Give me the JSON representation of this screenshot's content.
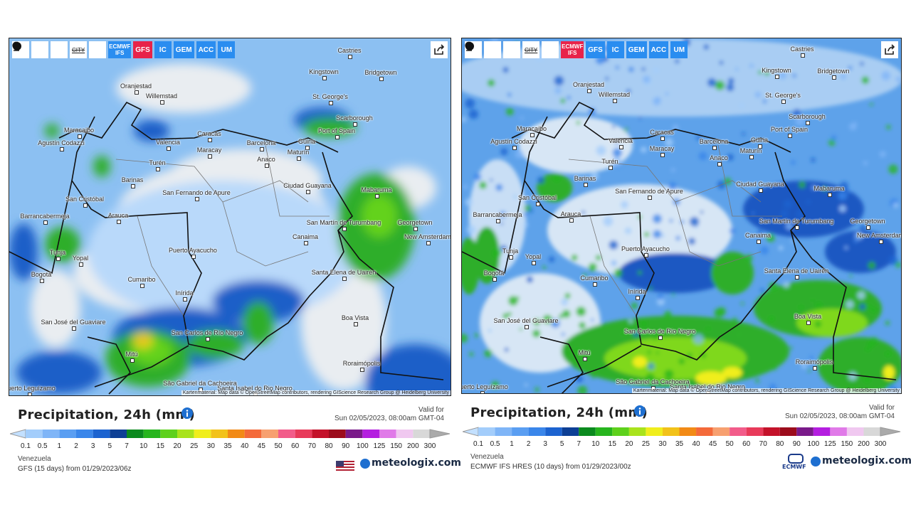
{
  "cities": [
    "Castries",
    "Kingstown",
    "Bridgetown",
    "Oranjestad",
    "Willemstad",
    "St. George's",
    "Scarborough",
    "Port of Spain",
    "Maracaibo",
    "Agustín Codazzi",
    "Caracas",
    "Valencia",
    "Maracay",
    "Barcelona",
    "Güiria",
    "Maturín",
    "Anaco",
    "Turén",
    "Barinas",
    "San Cristóbal",
    "San Fernando de Apure",
    "Ciudad Guayana",
    "Mabaruma",
    "Barrancabermeja",
    "Arauca",
    "San Martín de Turumbang",
    "Georgetown",
    "New Amsterdam",
    "Canaima",
    "Tunja",
    "Yopal",
    "Puerto Ayacucho",
    "Bogotá",
    "Santa Elena de Uairén",
    "Cumaribo",
    "Inírida",
    "Boa Vista",
    "San José del Guaviare",
    "San Carlos de Río Negro",
    "Mitú",
    "Roraimópolis",
    "São Gabriel da Cachoeira",
    "Santa Isabel do Rio Negro",
    "Puerto Leguízamo"
  ],
  "attribution": "Kartenmaterial: Map data © OpenStreetMap contributors, rendering GIScience Research Group @ Heidelberg University",
  "legend": {
    "labels": [
      "0.1",
      "0.5",
      "1",
      "2",
      "3",
      "5",
      "7",
      "10",
      "15",
      "20",
      "25",
      "30",
      "35",
      "40",
      "45",
      "50",
      "60",
      "70",
      "80",
      "90",
      "100",
      "125",
      "150",
      "200",
      "300"
    ],
    "colors": [
      "#c3e0ff",
      "#a3cdfb",
      "#7fb5f7",
      "#5a9ef2",
      "#3a86ea",
      "#1c63d0",
      "#0d3f95",
      "#0b8a1e",
      "#27b51e",
      "#5ed11c",
      "#a9e31c",
      "#f0ee1c",
      "#f2c21a",
      "#f28a16",
      "#f46a3a",
      "#f7a070",
      "#f25c8a",
      "#e83a5a",
      "#c4122a",
      "#9c0c1c",
      "#7a1a8a",
      "#b41ee0",
      "#e07ae8",
      "#f0c8f0",
      "#d8d8d8"
    ]
  },
  "panels": [
    {
      "toolbar": {
        "city": "CITY",
        "models": [
          "ECMWF IFS",
          "GFS",
          "IC",
          "GEM",
          "ACC",
          "UM"
        ],
        "active": 1
      },
      "title": "Precipitation, 24h (mm)",
      "valid_label": "Valid for",
      "valid_time": "Sun 02/05/2023, 08:00am GMT-04",
      "region": "Venezuela",
      "run": "GFS (15 days) from 01/29/2023/06z",
      "brand": "meteologix.com"
    },
    {
      "toolbar": {
        "city": "CITY",
        "models": [
          "ECMWF IFS",
          "GFS",
          "IC",
          "GEM",
          "ACC",
          "UM"
        ],
        "active": 0
      },
      "title": "Precipitation, 24h (mm)",
      "valid_label": "Valid for",
      "valid_time": "Sun 02/05/2023, 08:00am GMT-04",
      "region": "Venezuela",
      "run": "ECMWF IFS HRES (10 days) from 01/29/2023/00z",
      "brand": "meteologix.com",
      "logo": "ECMWF"
    }
  ]
}
